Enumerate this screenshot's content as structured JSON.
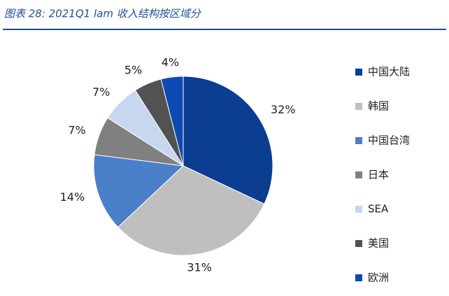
{
  "chart_data": {
    "type": "pie",
    "title": "图表 28:  2021Q1 lam 收入结构按区域分",
    "categories": [
      "中国大陆",
      "韩国",
      "中国台湾",
      "日本",
      "SEA",
      "美国",
      "欧洲"
    ],
    "values": [
      32,
      31,
      14,
      7,
      7,
      5,
      4
    ],
    "value_labels": [
      "32%",
      "31%",
      "14%",
      "7%",
      "7%",
      "5%",
      "4%"
    ],
    "colors": [
      "#0b3d91",
      "#bfbfbf",
      "#4a7fc9",
      "#808080",
      "#c6d7ef",
      "#525252",
      "#0d4bb3"
    ],
    "legend": "right"
  }
}
